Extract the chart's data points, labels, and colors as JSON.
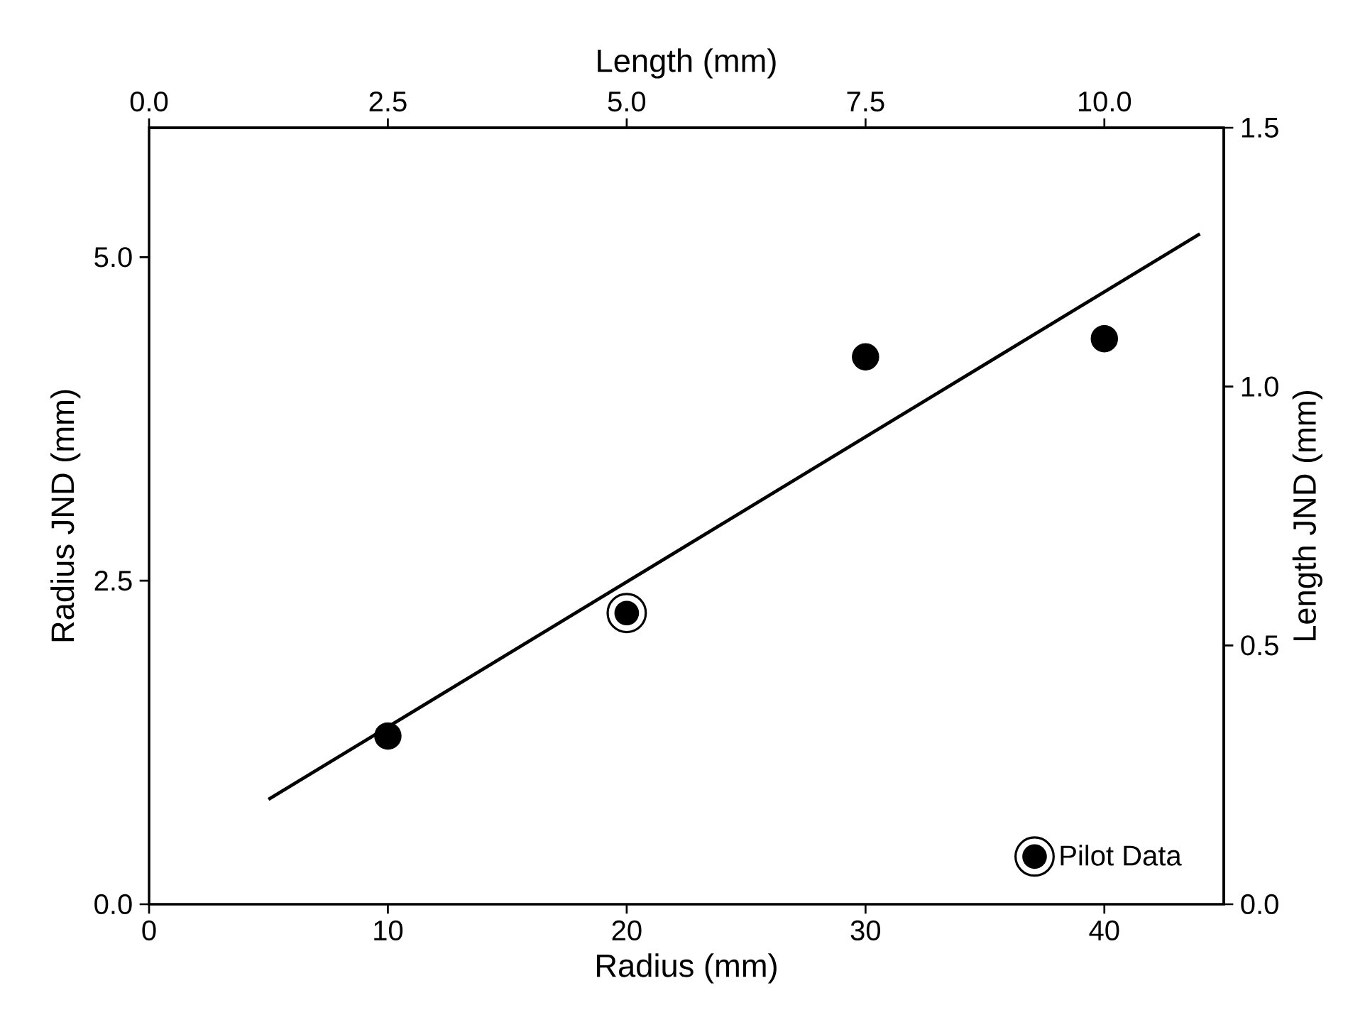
{
  "chart_data": {
    "type": "scatter",
    "xlabel": "Radius (mm)",
    "ylabel": "Radius JND (mm)",
    "x2label": "Length (mm)",
    "y2label": "Length JND (mm)",
    "series": [
      {
        "color": "#000000",
        "marker": "circle",
        "x": [
          10,
          30,
          40
        ],
        "values": [
          1.3,
          4.23,
          4.37
        ]
      },
      {
        "name": "Pilot Data",
        "color": "#000000",
        "marker": "double circle",
        "x": [
          20
        ],
        "values": [
          2.25
        ]
      },
      {
        "type": "line",
        "color": "#000000",
        "marker": "none",
        "line_style": "solid",
        "x": [
          5,
          44
        ],
        "values": [
          0.81,
          5.18
        ]
      }
    ],
    "xlim": [
      0,
      45
    ],
    "xticks": [
      0,
      10,
      20,
      30,
      40
    ],
    "ylim": [
      0,
      6
    ],
    "yticks": [
      {
        "value": 0,
        "label": "0.0"
      },
      {
        "value": 2.5,
        "label": "2.5"
      },
      {
        "value": 5,
        "label": "5.0"
      }
    ],
    "x2lim": [
      0,
      11.25
    ],
    "x2ticks": [
      {
        "value": 0,
        "label": "0.0"
      },
      {
        "value": 2.5,
        "label": "2.5"
      },
      {
        "value": 5,
        "label": "5.0"
      },
      {
        "value": 7.5,
        "label": "7.5"
      },
      {
        "value": 10,
        "label": "10.0"
      }
    ],
    "y2lim": [
      0,
      1.5
    ],
    "y2ticks": [
      {
        "value": 0,
        "label": "0.0"
      },
      {
        "value": 0.5,
        "label": "0.5"
      },
      {
        "value": 1,
        "label": "1.0"
      },
      {
        "value": 1.5,
        "label": "1.5"
      }
    ],
    "legend": "bottom right",
    "grid": false
  }
}
